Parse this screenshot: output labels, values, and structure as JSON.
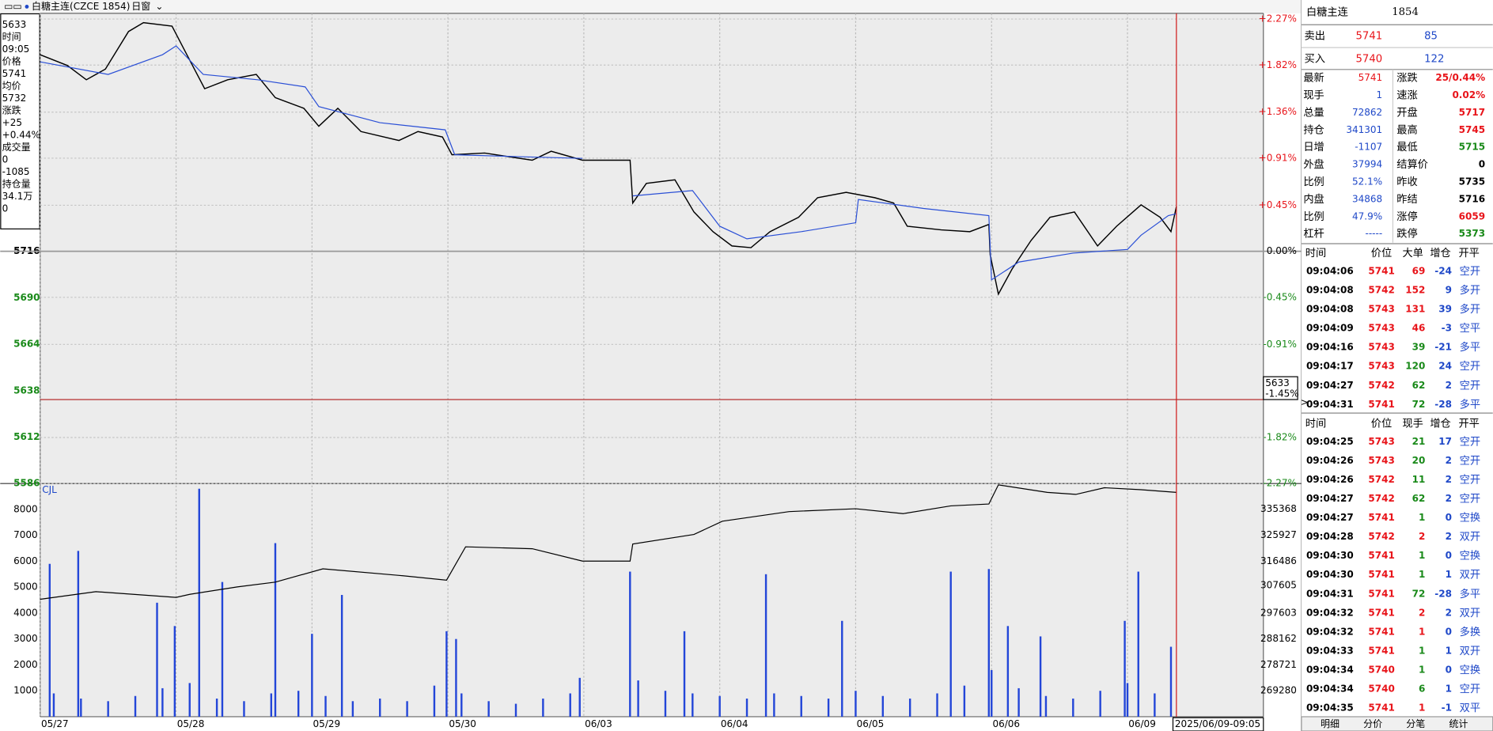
{
  "header": {
    "title": "白糖主连(CZCE 1854)",
    "menu": "日窗"
  },
  "info_box": {
    "lines": [
      "5633",
      "时间",
      "09:05",
      "价格",
      "5741",
      "均价",
      "5732",
      "涨跌",
      "+25",
      "+0.44%",
      "成交量",
      "0",
      "-1085",
      "持仓量",
      "34.1万",
      "0"
    ]
  },
  "chart_data": [
    {
      "type": "line",
      "series": [
        {
          "color": "#000000",
          "x": [
            0,
            0.2,
            0.34,
            0.48,
            0.65,
            0.76,
            0.97,
            1.1,
            1.21,
            1.38,
            1.59,
            1.73,
            1.94,
            2.05,
            2.19,
            2.36,
            2.64,
            2.78,
            2.96,
            3.03,
            3.27,
            3.62,
            3.76,
            3.99,
            4.34,
            4.36,
            4.46,
            4.67,
            4.81,
            4.95,
            5.09,
            5.23,
            5.37,
            5.58,
            5.72,
            5.93,
            6.14,
            6.28,
            6.38,
            6.63,
            6.84,
            6.98,
            6.99,
            7.05,
            7.15,
            7.29,
            7.43,
            7.61,
            7.78,
            7.92,
            8.1,
            8.24,
            8.32,
            8.36
          ],
          "values": [
            5826,
            5820,
            5812,
            5818,
            5839,
            5844,
            5842,
            5823,
            5807,
            5812,
            5815,
            5802,
            5796,
            5786,
            5796,
            5783,
            5778,
            5783,
            5780,
            5770,
            5771,
            5767,
            5772,
            5767,
            5767,
            5743,
            5754,
            5756,
            5738,
            5727,
            5719,
            5718,
            5727,
            5735,
            5746,
            5749,
            5746,
            5743,
            5730,
            5728,
            5727,
            5731,
            5714,
            5692,
            5706,
            5722,
            5735,
            5738,
            5719,
            5730,
            5742,
            5735,
            5727,
            5741
          ]
        },
        {
          "color": "#2a4fd6",
          "x": [
            0,
            0.5,
            0.9,
            1.0,
            1.2,
            1.6,
            1.95,
            2.05,
            2.5,
            2.98,
            3.05,
            3.5,
            3.99,
            4.2,
            4.36,
            4.8,
            5.0,
            5.2,
            5.6,
            6.0,
            6.02,
            6.5,
            6.98,
            7.0,
            7.2,
            7.6,
            8.0,
            8.1,
            8.3,
            8.36
          ],
          "values": [
            5822,
            5815,
            5826,
            5831,
            5815,
            5812,
            5808,
            5797,
            5788,
            5784,
            5770,
            5769,
            5768,
            null,
            5747,
            5750,
            5730,
            5723,
            5727,
            5732,
            5745,
            5740,
            5736,
            5700,
            5710,
            5715,
            5717,
            5725,
            5736,
            5737
          ]
        }
      ],
      "xlim": [
        0,
        9
      ],
      "xticks": [
        {
          "value": 0,
          "label": "05/27"
        },
        {
          "value": 1,
          "label": "05/28"
        },
        {
          "value": 2,
          "label": "05/29"
        },
        {
          "value": 3,
          "label": "05/30"
        },
        {
          "value": 4,
          "label": "06/03"
        },
        {
          "value": 5,
          "label": "06/04"
        },
        {
          "value": 6,
          "label": "06/05"
        },
        {
          "value": 7,
          "label": "06/06"
        },
        {
          "value": 8,
          "label": "06/09"
        }
      ],
      "ylim": [
        5586,
        5846
      ],
      "yticks": [
        5716,
        5690,
        5664,
        5638,
        5612,
        5586
      ],
      "y2lim": [
        -2.27,
        2.27
      ],
      "y2ticks": [
        {
          "value": 2.27,
          "label": "+2.27%"
        },
        {
          "value": 1.82,
          "label": "+1.82%"
        },
        {
          "value": 1.36,
          "label": "+1.36%"
        },
        {
          "value": 0.91,
          "label": "+0.91%"
        },
        {
          "value": 0.45,
          "label": "+0.45%"
        },
        {
          "value": 0,
          "label": "0.00%"
        },
        {
          "value": -0.45,
          "label": "-0.45%"
        },
        {
          "value": -0.91,
          "label": "-0.91%"
        },
        {
          "value": -1.82,
          "label": "-1.82%"
        },
        {
          "value": -2.27,
          "label": "-2.27%"
        }
      ],
      "cursor": {
        "value": 5633,
        "pct_label": "-1.45%",
        "x": 8.36
      },
      "timestamp": "2025/06/09-09:05"
    },
    {
      "type": "bar",
      "title": "CJL",
      "color": "#2346d8",
      "xlim": [
        0,
        9
      ],
      "x": [
        0.1,
        0.3,
        0.5,
        0.7,
        0.9,
        1.1,
        1.3,
        1.5,
        1.7,
        1.9,
        2.1,
        2.3,
        2.5,
        2.7,
        2.9,
        3.1,
        3.3,
        3.5,
        3.7,
        3.9,
        4.4,
        4.6,
        4.8,
        5.0,
        5.2,
        5.4,
        5.6,
        5.8,
        6.0,
        6.2,
        6.4,
        6.6,
        6.8,
        7.0,
        7.2,
        7.4,
        7.6,
        7.8,
        8.0,
        8.2,
        0.07,
        0.28,
        0.86,
        0.99,
        1.17,
        1.34,
        1.73,
        2.0,
        2.22,
        2.99,
        3.06,
        3.97,
        4.34,
        4.74,
        5.34,
        5.9,
        6.7,
        6.98,
        7.12,
        7.36,
        7.98,
        8.08,
        8.32
      ],
      "values": [
        900,
        700,
        600,
        800,
        1100,
        1300,
        700,
        600,
        900,
        1000,
        800,
        600,
        700,
        600,
        1200,
        900,
        600,
        500,
        700,
        900,
        1400,
        1000,
        900,
        800,
        700,
        900,
        800,
        700,
        1000,
        800,
        700,
        900,
        1200,
        1800,
        1100,
        800,
        700,
        1000,
        1300,
        900,
        5900,
        6400,
        4400,
        3500,
        8800,
        5200,
        6700,
        3200,
        4700,
        3300,
        3000,
        1500,
        5600,
        3300,
        5500,
        3700,
        5600,
        5700,
        3500,
        3100,
        3700,
        5600,
        2700
      ],
      "ylim": [
        0,
        9000
      ],
      "yticks": [
        8000,
        7000,
        6000,
        5000,
        4000,
        3000,
        2000,
        1000
      ],
      "series": [
        {
          "axis": "y2",
          "color": "#000000",
          "x": [
            0,
            0.41,
            1.0,
            1.1,
            1.45,
            1.73,
            2.08,
            2.64,
            2.99,
            3.13,
            3.62,
            3.99,
            4.34,
            4.36,
            4.81,
            5.02,
            5.51,
            6.0,
            6.35,
            6.7,
            6.98,
            7.05,
            7.41,
            7.62,
            7.83,
            8.1,
            8.36
          ],
          "values": [
            302600,
            305380,
            303300,
            304400,
            307100,
            308850,
            313700,
            311300,
            309550,
            321690,
            321000,
            316500,
            316500,
            322700,
            326200,
            331000,
            334500,
            335570,
            333800,
            336600,
            337300,
            344250,
            341500,
            340800,
            343200,
            342500,
            341500
          ]
        }
      ],
      "y2lim": [
        259839,
        344740
      ],
      "y2ticks": [
        335368,
        325927,
        316486,
        307605,
        297603,
        288162,
        278721,
        269280
      ]
    }
  ],
  "quote": {
    "title": "白糖主连",
    "code": "1854",
    "ask": {
      "label": "卖出",
      "price": 5741,
      "size": 85
    },
    "bid": {
      "label": "买入",
      "price": 5740,
      "size": 122
    },
    "rows": [
      [
        "最新",
        5741,
        "涨跌",
        "25/0.44%"
      ],
      [
        "现手",
        1,
        "速涨",
        "0.02%"
      ],
      [
        "总量",
        72862,
        "开盘",
        5717
      ],
      [
        "持仓",
        341301,
        "最高",
        5745
      ],
      [
        "日增",
        -1107,
        "最低",
        5715
      ],
      [
        "外盘",
        37994,
        "结算价",
        0
      ],
      [
        "比例",
        "52.1%",
        "昨收",
        5735
      ],
      [
        "内盘",
        34868,
        "昨结",
        5716
      ],
      [
        "比例",
        "47.9%",
        "涨停",
        6059
      ],
      [
        "杠杆",
        "-----",
        "跌停",
        5373
      ]
    ]
  },
  "trades1": {
    "header": [
      "时间",
      "价位",
      "大单",
      "增仓",
      "开平"
    ],
    "rows": [
      [
        "09:04:06",
        5741,
        69,
        -24,
        "空开"
      ],
      [
        "09:04:08",
        5742,
        152,
        9,
        "多开"
      ],
      [
        "09:04:08",
        5743,
        131,
        39,
        "多开"
      ],
      [
        "09:04:09",
        5743,
        46,
        -3,
        "空平"
      ],
      [
        "09:04:16",
        5743,
        39,
        -21,
        "多平"
      ],
      [
        "09:04:17",
        5743,
        120,
        24,
        "空开"
      ],
      [
        "09:04:27",
        5742,
        62,
        2,
        "空开"
      ],
      [
        "09:04:31",
        5741,
        72,
        -28,
        "多平"
      ]
    ]
  },
  "trades2": {
    "header": [
      "时间",
      "价位",
      "现手",
      "增仓",
      "开平"
    ],
    "rows": [
      [
        "09:04:25",
        5743,
        21,
        17,
        "空开"
      ],
      [
        "09:04:26",
        5743,
        20,
        2,
        "空开"
      ],
      [
        "09:04:26",
        5742,
        11,
        2,
        "空开"
      ],
      [
        "09:04:27",
        5742,
        62,
        2,
        "空开"
      ],
      [
        "09:04:27",
        5741,
        1,
        0,
        "空换"
      ],
      [
        "09:04:28",
        5742,
        2,
        2,
        "双开"
      ],
      [
        "09:04:30",
        5741,
        1,
        0,
        "空换"
      ],
      [
        "09:04:30",
        5741,
        1,
        1,
        "双开"
      ],
      [
        "09:04:31",
        5741,
        72,
        -28,
        "多平"
      ],
      [
        "09:04:32",
        5741,
        2,
        2,
        "双开"
      ],
      [
        "09:04:32",
        5741,
        1,
        0,
        "多换"
      ],
      [
        "09:04:33",
        5741,
        1,
        1,
        "双开"
      ],
      [
        "09:04:34",
        5740,
        1,
        0,
        "空换"
      ],
      [
        "09:04:34",
        5740,
        6,
        1,
        "空开"
      ],
      [
        "09:04:35",
        5741,
        1,
        -1,
        "双平"
      ]
    ]
  },
  "tabs": [
    "明细",
    "分价",
    "分笔",
    "统计"
  ]
}
